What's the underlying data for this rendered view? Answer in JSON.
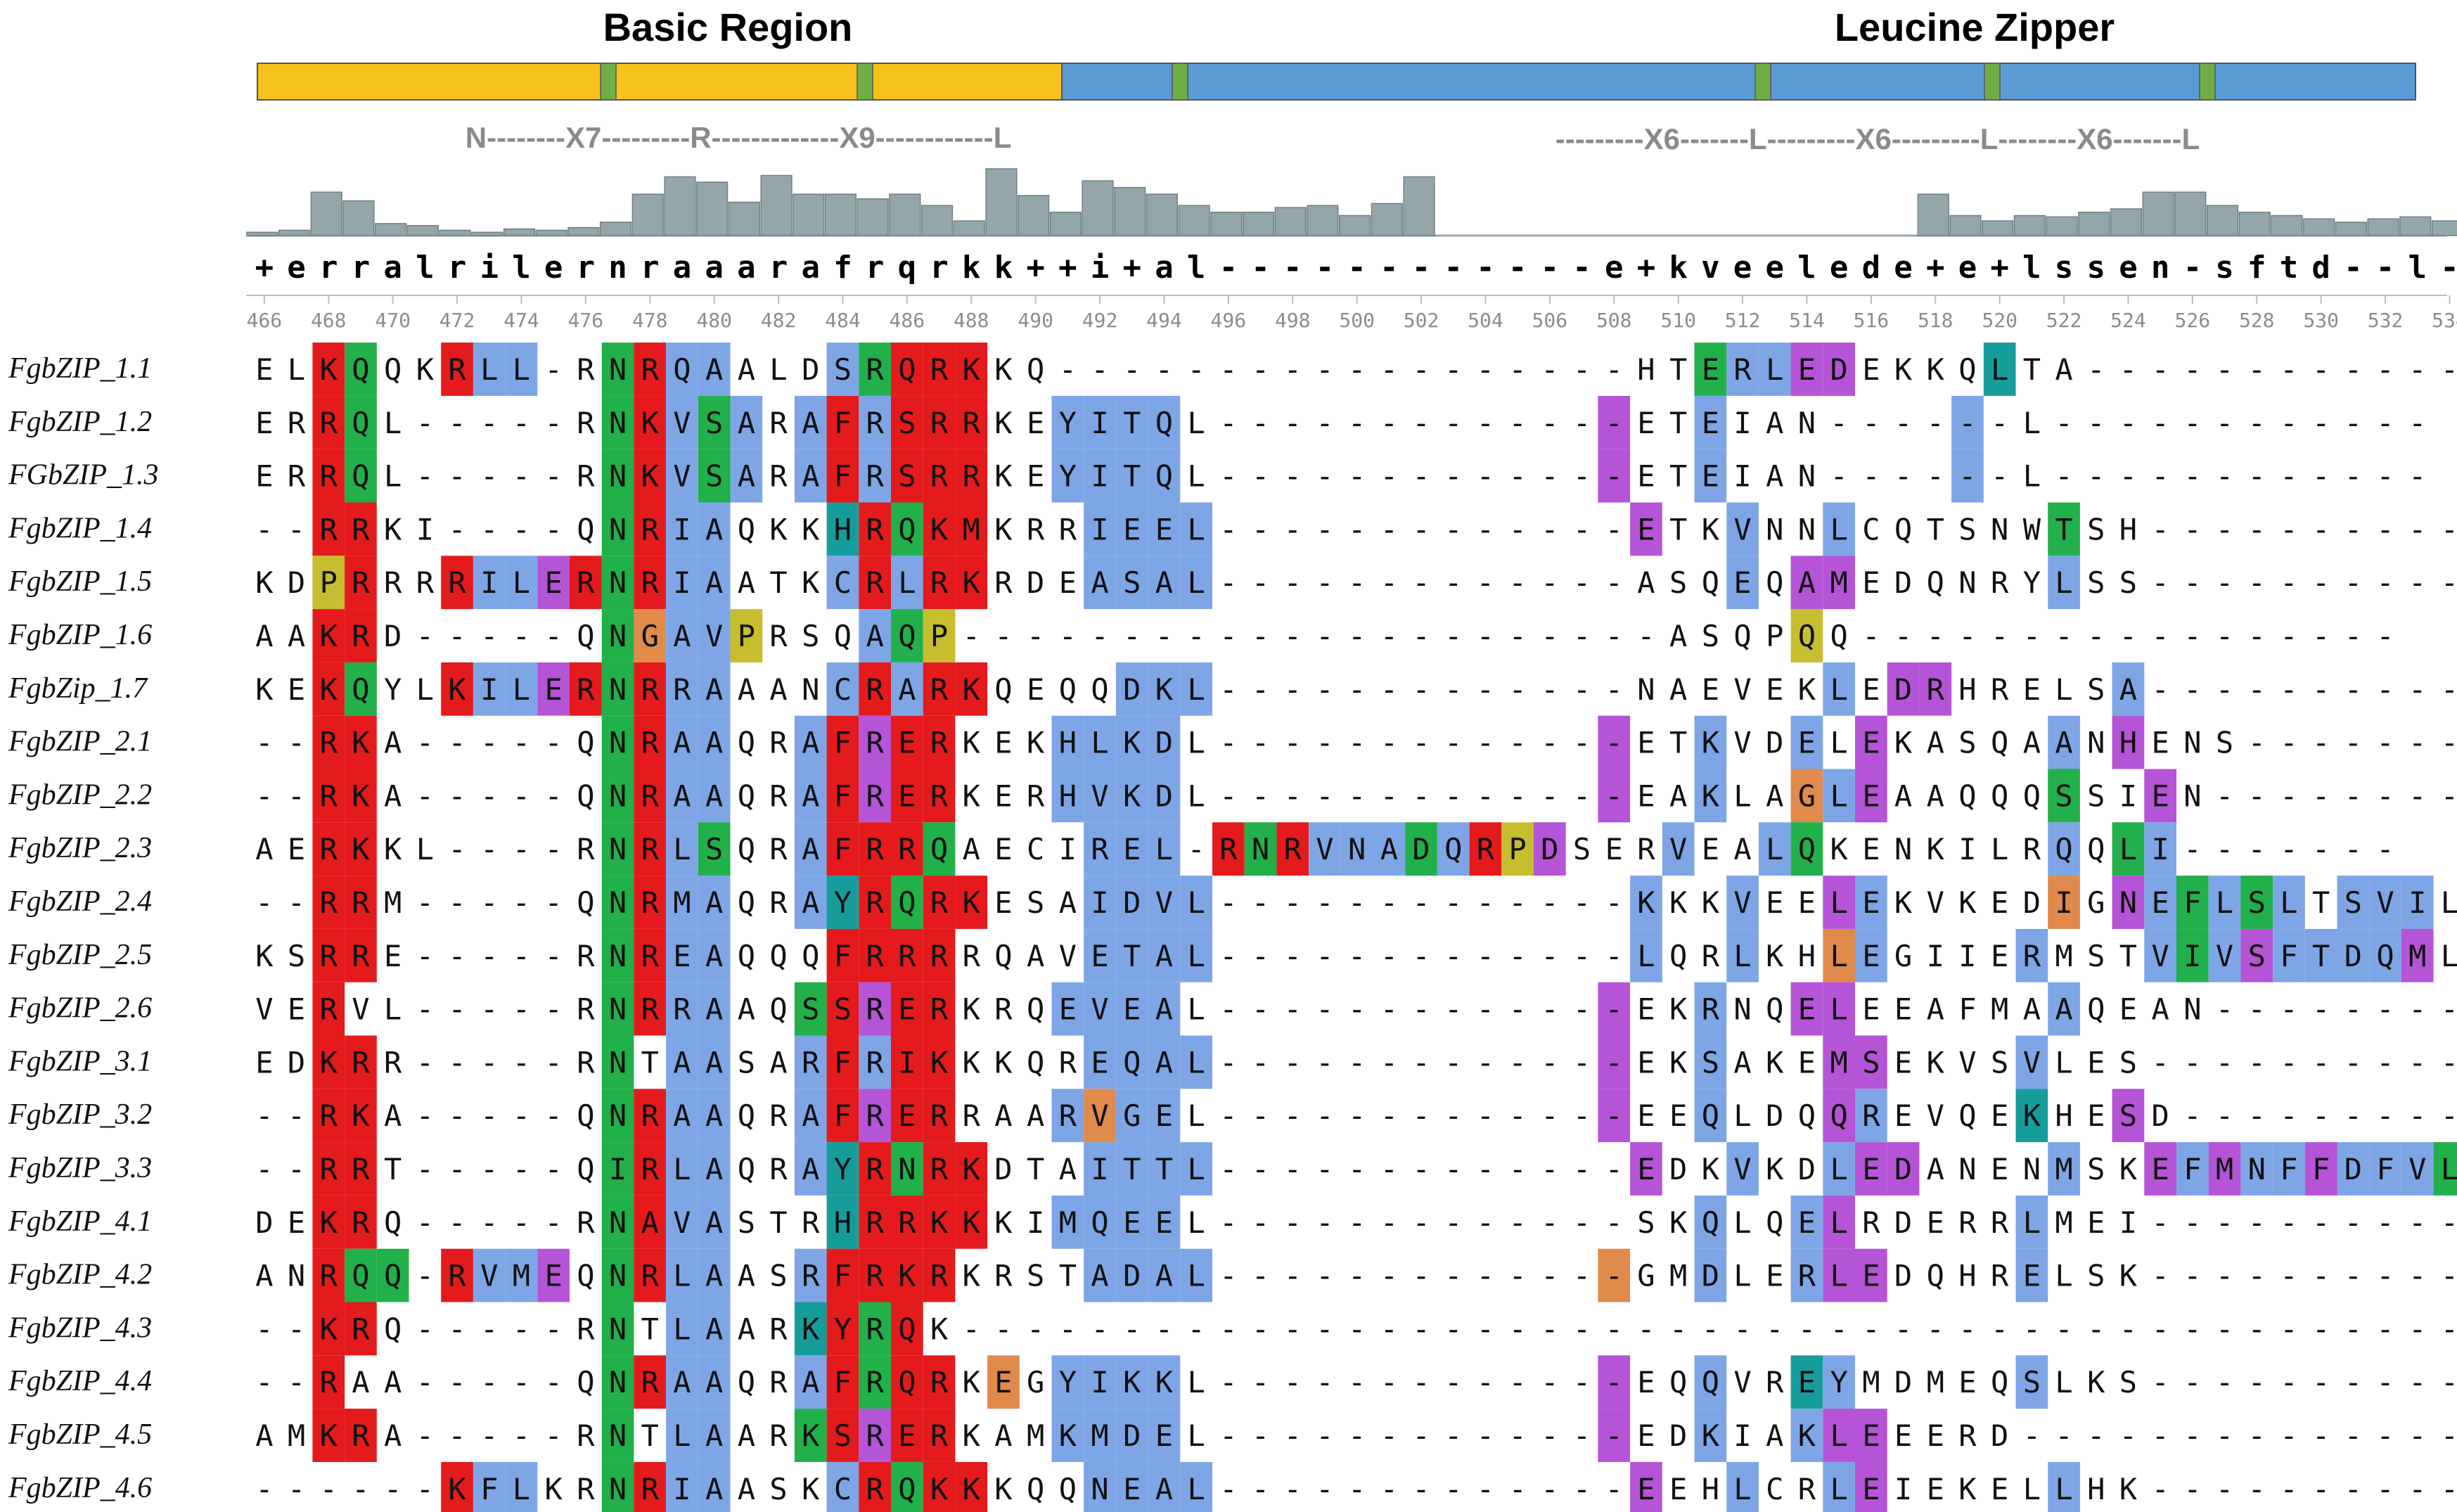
{
  "title_basic": "Basic Region",
  "title_zipper": "Leucine Zipper",
  "motif_left": "N--------X7---------R-------------X9------------L",
  "motif_right": "---------X6-------L---------X6---------L--------X6-------L",
  "consensus": "+erralrilernraaarafrqrkk++i+al------------e+kveelede+e+lssen-sftd--l--",
  "position_start": 466,
  "conservation": [
    0.05,
    0.08,
    0.65,
    0.52,
    0.18,
    0.15,
    0.08,
    0.05,
    0.1,
    0.08,
    0.12,
    0.2,
    0.62,
    0.88,
    0.8,
    0.5,
    0.9,
    0.62,
    0.62,
    0.55,
    0.62,
    0.45,
    0.22,
    1.0,
    0.6,
    0.35,
    0.82,
    0.72,
    0.62,
    0.45,
    0.35,
    0.35,
    0.42,
    0.45,
    0.3,
    0.48,
    0.88,
    0,
    0,
    0,
    0,
    0,
    0,
    0,
    0,
    0,
    0,
    0,
    0,
    0,
    0,
    0,
    0.62,
    0.3,
    0.22,
    0.3,
    0.28,
    0.35,
    0.4,
    0.65,
    0.65,
    0.45,
    0.35,
    0.3,
    0.25,
    0.2,
    0.25,
    0.28,
    0.22,
    0.2,
    0.2,
    0.18,
    0.16,
    0.12,
    0.08,
    0.1,
    0.1,
    0.1,
    0.1,
    0.05,
    0.05,
    0.05,
    0.05,
    0.15,
    0.05,
    0.05
  ],
  "colors": {
    "basic_bar": "#F7C21B",
    "zipper_bar": "#5B9BD5",
    "marker": "#70AD47",
    "conservation": "#95A6AB",
    "red": "#E41A1C",
    "green": "#21B04A",
    "blue": "#7EA6E6",
    "magenta": "#B554D6",
    "teal": "#179C9C",
    "orange": "#E08A4C",
    "olive": "#C6BE2F"
  },
  "sequences": [
    {
      "name": "FgbZIP_1.1",
      "seq": "ELKQQKRLL-RNRQAALDSRQRKKQ------------------HTERLEDEKKQLTA------------",
      "colors": "--RG--RBB--GRBB---BGRRR----------------------GBBMM----T-------------"
    },
    {
      "name": "FgbZIP_1.2",
      "seq": "ERRQL-----RNKVSARAFRSRRKEYITQL-------------ETEIAN------L------------",
      "colors": "--RG-------GRBGB-BRBRRR--BBBB-------------M--B-------B-------------"
    },
    {
      "name": "FGbZIP_1.3",
      "seq": "ERRQL-----RNKVSARAFRSRRKEYITQL-------------ETEIAN------L------------",
      "colors": "--RG-------GRBGB-BRBRRR--BBBB-------------M--B-------B-------------"
    },
    {
      "name": "FgbZIP_1.4",
      "seq": "--RRKI----QNRIAQKKHRQKMKRRIEEL-------------ETKVNNLCQTSNWTSH----------",
      "colors": "--RR-------GRBB---TRGRR---BBBB-------------M--B--B------G-----------"
    },
    {
      "name": "FgbZIP_1.5",
      "seq": "KDPRRRRILERNRIAATKCRLRKRDEASAL-------------ASQEQAMEDQNRYLSS----------",
      "colors": "--YR--RBBMRGRBB---BRBRR---BBBB----------------B-MM------B-----------"
    },
    {
      "name": "FgbZIP_1.6",
      "seq": "AAKRD-----QNGAVPRSQAQP----------------------ASQPQQ-----------------",
      "colors": "--RR-------GOBBY---BGY--------------------------Y------------------"
    },
    {
      "name": "FgbZip_1.7",
      "seq": "KEKQYLKILERNRRAAANCRARKQEQQDKL-------------NAEVEKLEDRHRELSA----------",
      "colors": "--RG--RBBMRGRBB---BRBRR----BBB-------------------B-MM-----B----------"
    },
    {
      "name": "FgbZIP_2.1",
      "seq": "--RKA-----QNRAAQRAFRERKEKHLKDL-------------ETKVDELEKASQAANHENS-------",
      "colors": "--RR-------GRBB--BRMRR---BBBB-------------M--B--B-M-----B-M---------"
    },
    {
      "name": "FgbZIP_2.2",
      "seq": "--RKA-----QNRAAQRAFRERKERHVKDL-------------EAKLAGLEAAQQQSSIEN--------",
      "colors": "--RR-------GRBB--BRMRR---BBBB-------------M--B--OBM-----G--M---------"
    },
    {
      "name": "FgbZIP_2.3",
      "seq": "AERKKL----RNRLSQRAFRRQAECIREL-RNRVNADQRPDSERVEALQKENKILRQQLI-------",
      "colors": "--RR-------GRBG--BRRRG----BBB-RGRBBBGBRYM---B--BG-------B-GB--------"
    },
    {
      "name": "FgbZIP_2.4",
      "seq": "--RRM-----QNRMAQRAYRQRKESAIDVL-------------KKKVEELEKVKEDIGNEFLSLTSVILEK",
      "colors": "--RR-------GRBB--BTRGRR---BBBB-------------B--B--MB-----O-MBGBGB-BBB"
    },
    {
      "name": "FgbZIP_2.5",
      "seq": "KSRRE-----RNREAQQQFRRRRQAVETAL-------------LQRLKHLEGIIERMSTVIVSFTDQMLHE",
      "colors": "--RR-------GRBB---RRRR----BBBB-------------B--B--OB----B---BGBMBBBBM"
    },
    {
      "name": "FgbZIP_2.6",
      "seq": "VERVL-----RNRRAAQSSRERKRQEVEAL-------------EKRNQELEEAFMAAQEAN--------",
      "colors": "--R--------GRBB--GRMRR---BBBB-------------M--B--MM------B-----------"
    },
    {
      "name": "FgbZIP_3.1",
      "seq": "EDKRR-----RNTAASARFRIKKKQREQAL-------------EKSAKEMSEKVSVLES----------",
      "colors": "--RR-------G-BB--BRBRR----BBBB------------M--B---MM----B------------"
    },
    {
      "name": "FgbZIP_3.2",
      "seq": "--RKA-----QNRAAQRAFRERRAARVGEL-------------EEQLDQQREVQEKHESD---------",
      "colors": "--RR-------GRBB--BRMRR---BOBB-------------M--B---MB----T--M---------"
    },
    {
      "name": "FgbZIP_3.3",
      "seq": "--RRT-----QIRLAQRAYRNRKDTAITTL-------------EDKVKDLEDANENMSKEFMNFFDFVLSQ",
      "colors": "--RR-------GRBB--BTRGRR---BBBB-------------M--B--BMM----B--MBMBBMBBBG"
    },
    {
      "name": "FgbZIP_4.1",
      "seq": "DEKRQ-----RNAVASTRHRRKKKIMQEEL-------------SKQLQELRDERRLMEI----------",
      "colors": "--RR-------GRBB---TRRRR--BBBB----------------B--BM-----B------------"
    },
    {
      "name": "FgbZIP_4.2",
      "seq": "ANRQQ-RVMEQNRLAASRFRKRKRSTADAL-------------GMDLERLEDQHRELSK----------",
      "colors": "--RGG-RBBMQGRBB--BRRRR----BBBB------------O--B--BMM----B------------"
    },
    {
      "name": "FgbZIP_4.3",
      "seq": "--KRQ-----RNTLAARKYRQK------------------------------------------------",
      "colors": "--RR-------G-BB--TRGR-------------------------------------------------"
    },
    {
      "name": "FgbZIP_4.4",
      "seq": "--RAA-----QNRAAQRAFRQRKEGYIKKL-------------EQQVREYMDMEQSLKS----------",
      "colors": "--R--------GRBB--BRGRR-O-BBBB-------------M--B--TB-----B------------"
    },
    {
      "name": "FgbZIP_4.5",
      "seq": "AMKRA-----RNTLAARKSRERKAMKMDEL-------------EDKIAKLEEERD--------------",
      "colors": "--RR-------G-BB--GRMRR---BBBB-------------M--B--BMM-----------------"
    },
    {
      "name": "FgbZIP_4.6",
      "seq": "------KFLKRNRIAASKCRQKKKQQNEAL-------------EEHLCRLEIEKELLHK----------",
      "colors": "------RBB--GRBB---BRGRR---BBBB-------------M--B--BM-----B------------"
    }
  ]
}
